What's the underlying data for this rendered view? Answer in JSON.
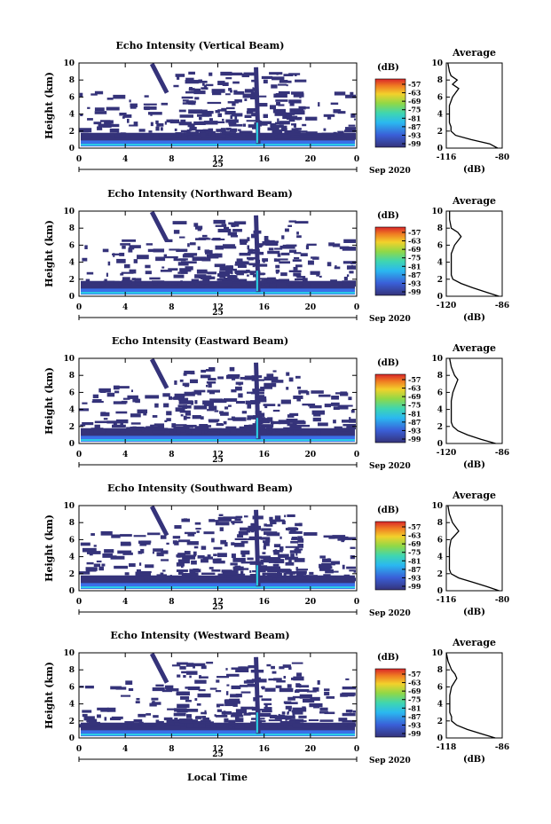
{
  "xlabel": "Local Time",
  "date_label": "Sep 2020",
  "day_label": "25",
  "colorbar": {
    "unit": "(dB)",
    "ticks": [
      "-57",
      "-63",
      "-69",
      "-75",
      "-81",
      "-87",
      "-93",
      "-99"
    ]
  },
  "avg_xlabel": "(dB)",
  "avg_title": "Average",
  "colors": {
    "low": "#35337a",
    "mid_blue": "#3a6fe8",
    "cyan": "#2ad6e6",
    "green": "#6bd35a",
    "yellow": "#f2d12b",
    "orange": "#f07b22",
    "red": "#d9262a"
  },
  "chart_data": [
    {
      "type": "heatmap",
      "title": "Echo Intensity (Vertical Beam)",
      "ylabel": "Height (km)",
      "xlim": [
        0,
        24
      ],
      "ylim": [
        0,
        10
      ],
      "xticks": [
        "0",
        "4",
        "8",
        "12",
        "16",
        "20",
        "0"
      ],
      "yticks": [
        "0",
        "2",
        "4",
        "6",
        "8",
        "10"
      ],
      "colorbar_range": [
        -99,
        -57
      ],
      "average": {
        "title": "Average",
        "xlabel": "(dB)",
        "xlim": [
          -116,
          -80
        ],
        "xticks": [
          "-116",
          "-80"
        ],
        "height": [
          0,
          0.5,
          1,
          1.5,
          2,
          2.5,
          3,
          4,
          5,
          6,
          7,
          7.5,
          8,
          8.5,
          9,
          10
        ],
        "db": [
          -83,
          -88,
          -100,
          -110,
          -113,
          -113,
          -114,
          -114,
          -114,
          -112,
          -108,
          -112,
          -109,
          -113,
          -114,
          -115
        ]
      }
    },
    {
      "type": "heatmap",
      "title": "Echo Intensity (Northward Beam)",
      "ylabel": "Height (km)",
      "xlim": [
        0,
        24
      ],
      "ylim": [
        0,
        10
      ],
      "xticks": [
        "0",
        "4",
        "8",
        "12",
        "16",
        "20",
        "0"
      ],
      "yticks": [
        "0",
        "2",
        "4",
        "6",
        "8",
        "10"
      ],
      "colorbar_range": [
        -99,
        -57
      ],
      "average": {
        "title": "Average",
        "xlabel": "(dB)",
        "xlim": [
          -120,
          -86
        ],
        "xticks": [
          "-120",
          "-86"
        ],
        "height": [
          0,
          0.5,
          1,
          1.5,
          2,
          2.5,
          3,
          4,
          5,
          6,
          7,
          7.5,
          8,
          9,
          10
        ],
        "db": [
          -88,
          -96,
          -104,
          -111,
          -116,
          -117,
          -117,
          -117,
          -117,
          -115,
          -111,
          -113,
          -117,
          -118,
          -118
        ]
      }
    },
    {
      "type": "heatmap",
      "title": "Echo Intensity (Eastward Beam)",
      "ylabel": "Height (km)",
      "xlim": [
        0,
        24
      ],
      "ylim": [
        0,
        10
      ],
      "xticks": [
        "0",
        "4",
        "8",
        "12",
        "16",
        "20",
        "0"
      ],
      "yticks": [
        "0",
        "2",
        "4",
        "6",
        "8",
        "10"
      ],
      "colorbar_range": [
        -99,
        -57
      ],
      "average": {
        "title": "Average",
        "xlabel": "(dB)",
        "xlim": [
          -120,
          -86
        ],
        "xticks": [
          "-120",
          "-86"
        ],
        "height": [
          0,
          0.5,
          1,
          1.5,
          2,
          2.5,
          3,
          4,
          5,
          6,
          7,
          7.5,
          8,
          9,
          10
        ],
        "db": [
          -90,
          -99,
          -107,
          -113,
          -116,
          -117,
          -117,
          -117,
          -117,
          -116,
          -114,
          -113,
          -115,
          -117,
          -118
        ]
      }
    },
    {
      "type": "heatmap",
      "title": "Echo Intensity (Southward Beam)",
      "ylabel": "Height (km)",
      "xlim": [
        0,
        24
      ],
      "ylim": [
        0,
        10
      ],
      "xticks": [
        "0",
        "4",
        "8",
        "12",
        "16",
        "20",
        "0"
      ],
      "yticks": [
        "0",
        "2",
        "4",
        "6",
        "8",
        "10"
      ],
      "colorbar_range": [
        -99,
        -57
      ],
      "average": {
        "title": "Average",
        "xlabel": "(dB)",
        "xlim": [
          -116,
          -80
        ],
        "xticks": [
          "-116",
          "-80"
        ],
        "height": [
          0,
          0.5,
          1,
          1.5,
          2,
          2.5,
          3,
          4,
          5,
          6,
          7,
          7.5,
          8,
          9,
          10
        ],
        "db": [
          -82,
          -90,
          -99,
          -108,
          -113,
          -114,
          -114,
          -114,
          -114,
          -113,
          -108,
          -110,
          -112,
          -114,
          -115
        ]
      }
    },
    {
      "type": "heatmap",
      "title": "Echo Intensity (Westward Beam)",
      "ylabel": "Height (km)",
      "xlim": [
        0,
        24
      ],
      "ylim": [
        0,
        10
      ],
      "xticks": [
        "0",
        "4",
        "8",
        "12",
        "16",
        "20",
        "0"
      ],
      "yticks": [
        "0",
        "2",
        "4",
        "6",
        "8",
        "10"
      ],
      "colorbar_range": [
        -99,
        -57
      ],
      "average": {
        "title": "Average",
        "xlabel": "(dB)",
        "xlim": [
          -118,
          -86
        ],
        "xticks": [
          "-118",
          "-86"
        ],
        "height": [
          0,
          0.5,
          1,
          1.5,
          2,
          2.5,
          3,
          4,
          5,
          6,
          7,
          7.5,
          8,
          9,
          10
        ],
        "db": [
          -90,
          -98,
          -106,
          -112,
          -115,
          -115,
          -116,
          -116,
          -116,
          -115,
          -112,
          -113,
          -115,
          -117,
          -118
        ]
      }
    }
  ]
}
